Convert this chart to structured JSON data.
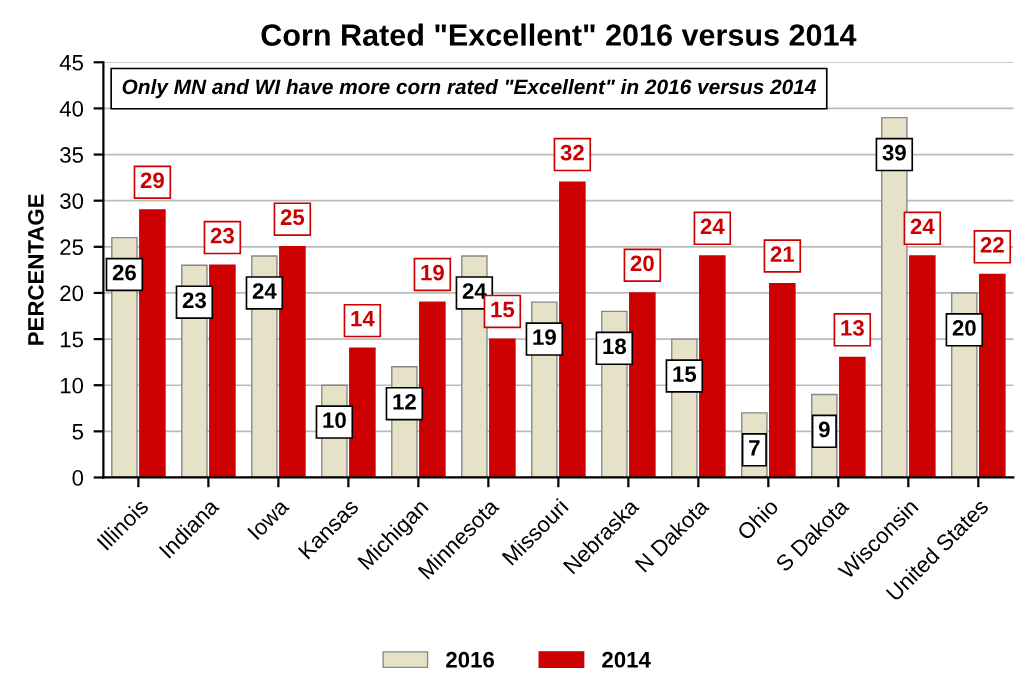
{
  "chart_data": {
    "type": "bar",
    "title": "Corn Rated \"Excellent\" 2016 versus 2014",
    "ylabel": "PERCENTAGE",
    "categories": [
      "Illinois",
      "Indiana",
      "Iowa",
      "Kansas",
      "Michigan",
      "Minnesota",
      "Missouri",
      "Nebraska",
      "N Dakota",
      "Ohio",
      "S Dakota",
      "Wisconsin",
      "United States"
    ],
    "series": [
      {
        "name": "2016",
        "color": "#e6e2c8",
        "values": [
          26,
          23,
          24,
          10,
          12,
          24,
          19,
          18,
          15,
          7,
          9,
          39,
          20
        ]
      },
      {
        "name": "2014",
        "color": "#cc0000",
        "values": [
          29,
          23,
          25,
          14,
          19,
          15,
          32,
          20,
          24,
          21,
          13,
          24,
          22
        ]
      }
    ],
    "ylim": [
      0,
      45
    ],
    "yticks": [
      0,
      5,
      10,
      15,
      20,
      25,
      30,
      35,
      40,
      45
    ],
    "grid": "y",
    "legend": "bottom",
    "data_labels": true,
    "annotations": [
      "Only MN and WI have more corn rated \"Excellent\" in 2016 versus 2014"
    ]
  }
}
